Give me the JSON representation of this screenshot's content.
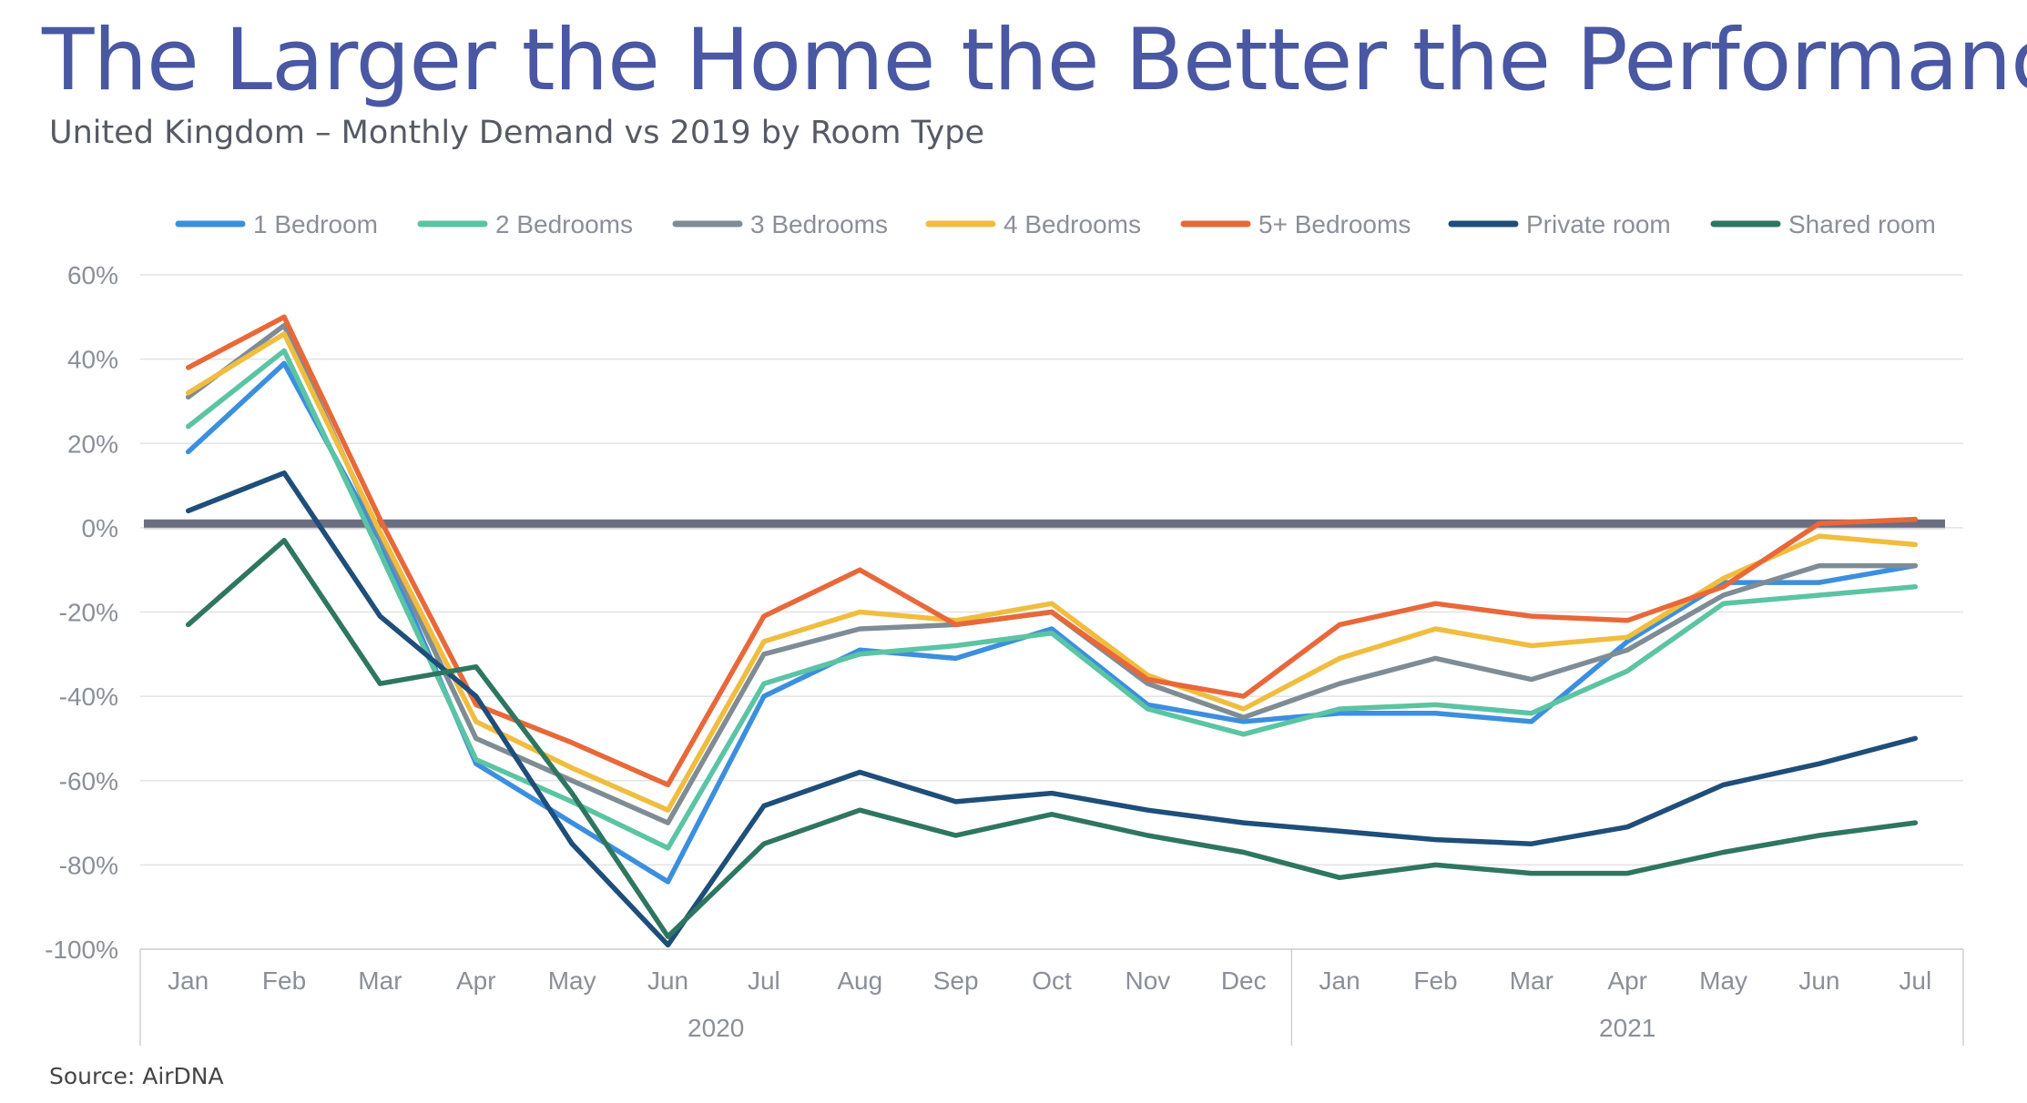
{
  "header": {
    "title": "The Larger the Home the Better the Performance",
    "subtitle": "United Kingdom –  Monthly Demand vs 2019 by Room Type"
  },
  "footer": {
    "source": "Source: AirDNA"
  },
  "chart_data": {
    "type": "line",
    "categories": [
      "Jan",
      "Feb",
      "Mar",
      "Apr",
      "May",
      "Jun",
      "Jul",
      "Aug",
      "Sep",
      "Oct",
      "Nov",
      "Dec",
      "Jan",
      "Feb",
      "Mar",
      "Apr",
      "May",
      "Jun",
      "Jul"
    ],
    "category_groups": [
      {
        "label": "2020",
        "count": 12
      },
      {
        "label": "2021",
        "count": 7
      }
    ],
    "ylim": [
      -100,
      60
    ],
    "yticks": [
      60,
      40,
      20,
      0,
      -20,
      -40,
      -60,
      -80,
      -100
    ],
    "ytick_labels": [
      "60%",
      "40%",
      "20%",
      "0%",
      "-20%",
      "-40%",
      "-60%",
      "-80%",
      "-100%"
    ],
    "grid": "horizontal",
    "legend": "top",
    "reference_line": {
      "y": 1,
      "color": "#6b6e80"
    },
    "series": [
      {
        "name": "1 Bedroom",
        "color": "#3c8fde",
        "values": [
          18,
          39,
          -3,
          -56,
          -70,
          -84,
          -40,
          -29,
          -31,
          -24,
          -42,
          -46,
          -44,
          -44,
          -46,
          -27,
          -13,
          -13,
          -9
        ]
      },
      {
        "name": "2 Bedrooms",
        "color": "#5bc4a3",
        "values": [
          24,
          42,
          -6,
          -55,
          -65,
          -76,
          -37,
          -30,
          -28,
          -25,
          -43,
          -49,
          -43,
          -42,
          -44,
          -34,
          -18,
          -16,
          -14
        ]
      },
      {
        "name": "3 Bedrooms",
        "color": "#7f8c95",
        "values": [
          31,
          48,
          -2,
          -50,
          -60,
          -70,
          -30,
          -24,
          -23,
          -20,
          -37,
          -45,
          -37,
          -31,
          -36,
          -29,
          -16,
          -9,
          -9
        ]
      },
      {
        "name": "4 Bedrooms",
        "color": "#f0bd3f",
        "values": [
          32,
          46,
          -1,
          -46,
          -57,
          -67,
          -27,
          -20,
          -22,
          -18,
          -35,
          -43,
          -31,
          -24,
          -28,
          -26,
          -12,
          -2,
          -4
        ]
      },
      {
        "name": "5+ Bedrooms",
        "color": "#e8683a",
        "values": [
          38,
          50,
          2,
          -42,
          -51,
          -61,
          -21,
          -10,
          -23,
          -20,
          -36,
          -40,
          -23,
          -18,
          -21,
          -22,
          -14,
          1,
          2
        ]
      },
      {
        "name": "Private room",
        "color": "#1e4e79",
        "values": [
          4,
          13,
          -21,
          -40,
          -75,
          -99,
          -66,
          -58,
          -65,
          -63,
          -67,
          -70,
          -72,
          -74,
          -75,
          -71,
          -61,
          -56,
          -50
        ]
      },
      {
        "name": "Shared room",
        "color": "#2e7660",
        "values": [
          -23,
          -3,
          -37,
          -33,
          -63,
          -97,
          -75,
          -67,
          -73,
          -68,
          -73,
          -77,
          -83,
          -80,
          -82,
          -82,
          -77,
          -73,
          -70
        ]
      }
    ]
  }
}
